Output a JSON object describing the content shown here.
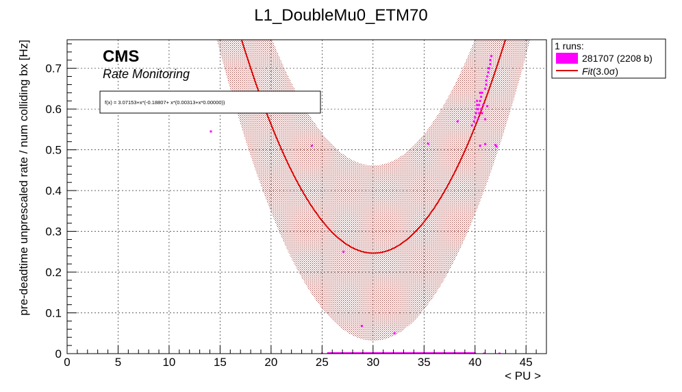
{
  "chart_data": {
    "type": "scatter",
    "title": "L1_DoubleMu0_ETM70",
    "xlabel": "< PU >",
    "ylabel": "pre-deadtime unprescaled rate / num colliding bx [Hz]",
    "xlim": [
      0,
      47
    ],
    "ylim": [
      0,
      0.77
    ],
    "xticks": [
      "0",
      "5",
      "10",
      "15",
      "20",
      "25",
      "30",
      "35",
      "40",
      "45"
    ],
    "yticks": [
      "0",
      "0.1",
      "0.2",
      "0.3",
      "0.4",
      "0.5",
      "0.6",
      "0.7"
    ],
    "grid": true,
    "watermark": {
      "experiment": "CMS",
      "subtitle": "Rate Monitoring"
    },
    "fit_formula": "f(x) = 3.07153+x*(-0.18807+ x*(0.00313+x*0.00000))",
    "fit_coefficients": [
      3.07153,
      -0.18807,
      0.00313,
      0.0
    ],
    "fit_band_halfwidth": 0.215,
    "legend": {
      "header": "1 runs:",
      "entries": [
        {
          "label": "281707 (2208 b)",
          "kind": "fill"
        },
        {
          "label_fit": "Fit",
          "label_sigma": "(3.0σ)",
          "kind": "line"
        }
      ],
      "placement": "right"
    },
    "series": [
      {
        "name": "281707 (2208 b)",
        "x": [
          14.1,
          24.0,
          27.1,
          28.9,
          32.1,
          35.4,
          38.3,
          39.7,
          39.9,
          40.0,
          40.1,
          40.2,
          40.2,
          40.3,
          40.4,
          40.5,
          40.6,
          40.7,
          40.8,
          41.0,
          41.1,
          41.1,
          41.2,
          41.3,
          41.3,
          41.4,
          41.5,
          41.5,
          41.6,
          40.4,
          40.6,
          40.2,
          40.5,
          40.7,
          40.3,
          41.0,
          41.2,
          41.0,
          42.0,
          42.1,
          40.5,
          25.0,
          26.0,
          27.0,
          28.0,
          29.0,
          30.0,
          31.0,
          32.0,
          33.0,
          34.0,
          35.0,
          36.0,
          37.0,
          38.0,
          39.0,
          40.0,
          40.9,
          42.4
        ],
        "y": [
          0.545,
          0.51,
          0.25,
          0.068,
          0.05,
          0.515,
          0.57,
          0.56,
          0.57,
          0.58,
          0.59,
          0.6,
          0.61,
          0.6,
          0.61,
          0.62,
          0.63,
          0.64,
          0.61,
          0.65,
          0.66,
          0.67,
          0.68,
          0.69,
          0.7,
          0.7,
          0.71,
          0.72,
          0.73,
          0.59,
          0.6,
          0.62,
          0.64,
          0.59,
          0.575,
          0.575,
          0.607,
          0.514,
          0.512,
          0.508,
          0.51,
          0.0,
          0.0,
          0.0,
          0.0,
          0.0,
          0.0,
          0.0,
          0.0,
          0.0,
          0.0,
          0.0,
          0.0,
          0.0,
          0.0,
          0.0,
          0.0,
          0.0,
          0.0
        ],
        "color": "#ff00ff"
      }
    ],
    "colors": {
      "fit": "#dd0000",
      "band": "#b22222",
      "points": "#ff00ff",
      "grid": "#000000"
    }
  }
}
